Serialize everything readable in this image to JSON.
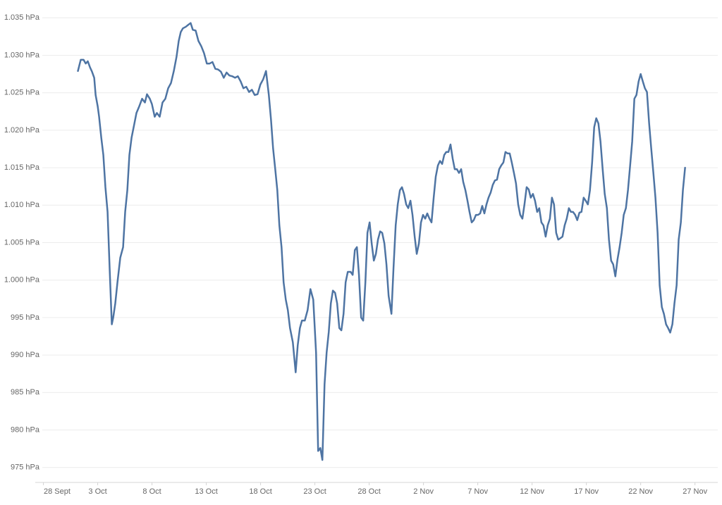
{
  "chart_data": {
    "type": "line",
    "x": [
      3.18,
      3.44,
      3.7,
      3.9,
      4.09,
      4.29,
      4.48,
      4.68,
      4.81,
      5.0,
      5.13,
      5.33,
      5.52,
      5.71,
      5.91,
      6.1,
      6.3,
      6.43,
      6.62,
      6.82,
      7.08,
      7.34,
      7.53,
      7.73,
      7.92,
      8.12,
      8.38,
      8.57,
      8.83,
      9.09,
      9.35,
      9.54,
      9.8,
      9.99,
      10.25,
      10.45,
      10.71,
      10.97,
      11.23,
      11.49,
      11.75,
      12.01,
      12.26,
      12.46,
      12.65,
      12.85,
      13.11,
      13.37,
      13.56,
      13.76,
      14.02,
      14.28,
      14.54,
      14.79,
      15.05,
      15.31,
      15.57,
      15.83,
      16.09,
      16.35,
      16.61,
      16.87,
      17.13,
      17.39,
      17.65,
      17.91,
      18.17,
      18.42,
      18.68,
      18.94,
      19.2,
      19.46,
      19.72,
      19.98,
      20.24,
      20.5,
      20.76,
      20.96,
      21.15,
      21.35,
      21.54,
      21.73,
      21.93,
      22.12,
      22.32,
      22.51,
      22.71,
      22.97,
      23.23,
      23.42,
      23.62,
      23.81,
      24.07,
      24.33,
      24.59,
      24.85,
      25.11,
      25.3,
      25.5,
      25.69,
      25.89,
      26.08,
      26.28,
      26.47,
      26.66,
      26.86,
      27.05,
      27.25,
      27.44,
      27.64,
      27.83,
      28.03,
      28.29,
      28.48,
      28.68,
      28.87,
      29.06,
      29.26,
      29.45,
      29.65,
      29.84,
      30.04,
      30.23,
      30.43,
      30.62,
      30.81,
      31.01,
      31.2,
      31.4,
      31.59,
      31.79,
      32.05,
      32.24,
      32.44,
      32.63,
      32.83,
      33.02,
      33.21,
      33.41,
      33.6,
      33.8,
      33.99,
      34.19,
      34.38,
      34.58,
      34.77,
      34.96,
      35.16,
      35.35,
      35.55,
      35.74,
      35.94,
      36.13,
      36.33,
      36.52,
      36.72,
      36.91,
      37.1,
      37.3,
      37.49,
      37.69,
      37.88,
      38.08,
      38.27,
      38.47,
      38.66,
      38.86,
      39.05,
      39.24,
      39.44,
      39.63,
      39.83,
      40.02,
      40.22,
      40.41,
      40.61,
      40.8,
      40.99,
      41.19,
      41.38,
      41.58,
      41.77,
      41.97,
      42.16,
      42.36,
      42.55,
      42.75,
      42.94,
      43.13,
      43.33,
      43.52,
      43.72,
      43.91,
      44.11,
      44.3,
      44.5,
      44.69,
      44.88,
      45.08,
      45.27,
      45.47,
      45.66,
      45.86,
      46.05,
      46.25,
      46.44,
      46.64,
      46.83,
      47.02,
      47.22,
      47.41,
      47.61,
      47.8,
      48.0,
      48.19,
      48.39,
      48.58,
      48.77,
      48.97,
      49.16,
      49.36,
      49.55,
      49.75,
      49.94,
      50.14,
      50.33,
      50.53,
      50.72,
      50.91,
      51.11,
      51.3,
      51.5,
      51.69,
      51.89,
      52.08,
      52.28,
      52.47,
      52.67,
      52.86,
      53.06,
      53.25,
      53.44,
      53.64,
      53.83,
      54.03,
      54.22,
      54.42,
      54.61,
      54.81,
      55.0,
      55.2,
      55.39,
      55.58,
      55.78,
      55.97,
      56.17,
      56.36,
      56.56,
      56.75,
      56.95,
      57.14,
      57.34,
      57.53,
      57.72,
      57.92,
      58.11,
      58.31,
      58.5,
      58.7,
      58.89,
      59.09
    ],
    "series": [
      {
        "color": "#4e74a3",
        "values": [
          1027.9,
          1029.4,
          1029.4,
          1028.9,
          1029.2,
          1028.4,
          1027.8,
          1027.0,
          1024.7,
          1023.2,
          1021.8,
          1019.0,
          1016.7,
          1012.4,
          1009.1,
          1001.6,
          994.1,
          995.0,
          996.9,
          999.7,
          1003.0,
          1004.4,
          1009.1,
          1012.0,
          1016.7,
          1019.0,
          1020.9,
          1022.3,
          1023.2,
          1024.2,
          1023.7,
          1024.8,
          1024.2,
          1023.5,
          1021.8,
          1022.3,
          1021.8,
          1023.7,
          1024.2,
          1025.6,
          1026.3,
          1027.9,
          1029.8,
          1031.9,
          1033.1,
          1033.6,
          1033.8,
          1034.1,
          1034.3,
          1033.4,
          1033.3,
          1031.9,
          1031.2,
          1030.3,
          1028.9,
          1028.9,
          1029.1,
          1028.2,
          1028.1,
          1027.8,
          1027.0,
          1027.7,
          1027.3,
          1027.2,
          1027.0,
          1027.2,
          1026.5,
          1025.6,
          1025.8,
          1025.1,
          1025.4,
          1024.7,
          1024.8,
          1026.1,
          1026.8,
          1027.9,
          1024.7,
          1021.4,
          1017.6,
          1014.8,
          1012.0,
          1007.3,
          1004.4,
          999.7,
          997.4,
          996.0,
          993.6,
          991.7,
          987.7,
          991.3,
          993.6,
          994.6,
          994.6,
          996.0,
          998.8,
          997.4,
          990.3,
          977.2,
          977.6,
          976.0,
          986.1,
          990.3,
          993.1,
          996.9,
          998.6,
          998.3,
          996.9,
          993.6,
          993.3,
          995.5,
          999.7,
          1001.1,
          1001.1,
          1000.7,
          1004.0,
          1004.4,
          1000.7,
          995.0,
          994.6,
          999.7,
          1006.3,
          1007.7,
          1004.9,
          1002.6,
          1003.5,
          1005.4,
          1006.5,
          1006.3,
          1004.9,
          1002.1,
          997.9,
          995.5,
          1001.6,
          1007.3,
          1010.1,
          1012.0,
          1012.4,
          1011.5,
          1010.1,
          1009.6,
          1010.6,
          1008.7,
          1005.8,
          1003.5,
          1004.9,
          1007.7,
          1008.7,
          1008.2,
          1008.9,
          1008.2,
          1007.7,
          1011.0,
          1013.8,
          1015.3,
          1015.9,
          1015.5,
          1016.7,
          1017.1,
          1017.1,
          1018.1,
          1016.2,
          1014.8,
          1014.8,
          1014.3,
          1014.8,
          1013.1,
          1012.0,
          1010.6,
          1009.1,
          1007.7,
          1008.0,
          1008.7,
          1008.7,
          1008.9,
          1009.9,
          1008.9,
          1010.1,
          1011.0,
          1011.7,
          1012.7,
          1013.3,
          1013.4,
          1014.8,
          1015.3,
          1015.7,
          1017.1,
          1016.9,
          1016.9,
          1015.7,
          1014.3,
          1012.9,
          1010.1,
          1008.7,
          1008.2,
          1010.1,
          1012.4,
          1012.1,
          1011.0,
          1011.5,
          1010.6,
          1009.1,
          1009.6,
          1007.7,
          1007.3,
          1005.8,
          1007.3,
          1008.2,
          1011.0,
          1010.1,
          1006.3,
          1005.4,
          1005.6,
          1005.8,
          1007.3,
          1008.2,
          1009.6,
          1009.1,
          1009.1,
          1008.7,
          1008.0,
          1009.0,
          1009.1,
          1011.0,
          1010.6,
          1010.1,
          1012.0,
          1015.7,
          1020.4,
          1021.6,
          1020.9,
          1018.5,
          1014.8,
          1011.5,
          1009.6,
          1005.4,
          1002.6,
          1002.1,
          1000.5,
          1002.7,
          1004.4,
          1006.3,
          1008.7,
          1009.6,
          1012.0,
          1015.3,
          1018.5,
          1024.2,
          1024.7,
          1026.5,
          1027.5,
          1026.5,
          1025.6,
          1025.1,
          1020.9,
          1017.6,
          1014.3,
          1011.0,
          1006.3,
          999.3,
          996.4,
          995.5,
          994.1,
          993.6,
          993.0,
          994.1,
          996.9,
          999.3,
          1005.4,
          1007.7,
          1012.0,
          1015.0
        ]
      }
    ],
    "xlim": [
      -0.1,
      62.1
    ],
    "xticks": [
      {
        "value": 0,
        "label": "28 Sept"
      },
      {
        "value": 5,
        "label": "3 Oct"
      },
      {
        "value": 10,
        "label": "8 Oct"
      },
      {
        "value": 15,
        "label": "13 Oct"
      },
      {
        "value": 20,
        "label": "18 Oct"
      },
      {
        "value": 25,
        "label": "23 Oct"
      },
      {
        "value": 30,
        "label": "28 Oct"
      },
      {
        "value": 35,
        "label": "2 Nov"
      },
      {
        "value": 40,
        "label": "7 Nov"
      },
      {
        "value": 45,
        "label": "12 Nov"
      },
      {
        "value": 50,
        "label": "17 Nov"
      },
      {
        "value": 55,
        "label": "22 Nov"
      },
      {
        "value": 60,
        "label": "27 Nov"
      }
    ],
    "ylim": [
      973,
      1037
    ],
    "yticks": [
      {
        "value": 975,
        "label": "975 hPa"
      },
      {
        "value": 980,
        "label": "980 hPa"
      },
      {
        "value": 985,
        "label": "985 hPa"
      },
      {
        "value": 990,
        "label": "990 hPa"
      },
      {
        "value": 995,
        "label": "995 hPa"
      },
      {
        "value": 1000,
        "label": "1.000 hPa"
      },
      {
        "value": 1005,
        "label": "1.005 hPa"
      },
      {
        "value": 1010,
        "label": "1.010 hPa"
      },
      {
        "value": 1015,
        "label": "1.015 hPa"
      },
      {
        "value": 1020,
        "label": "1.020 hPa"
      },
      {
        "value": 1025,
        "label": "1.025 hPa"
      },
      {
        "value": 1030,
        "label": "1.030 hPa"
      },
      {
        "value": 1035,
        "label": "1.035 hPa"
      }
    ],
    "grid": true
  }
}
